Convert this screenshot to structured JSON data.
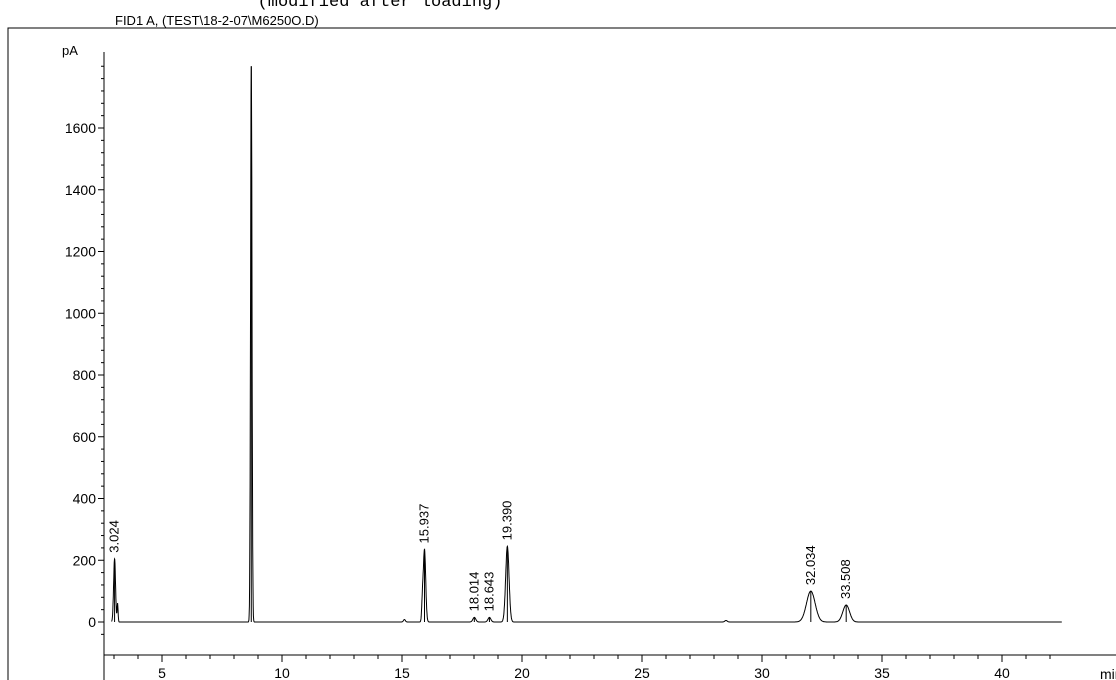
{
  "chart_data": {
    "type": "line",
    "header_note": "(modified after loading)",
    "title": "FID1 A, (TEST\\18-2-07\\M6250O.D)",
    "ylabel": "pA",
    "xlabel": "min",
    "xlim": [
      2.8,
      42.5
    ],
    "ylim": [
      -80,
      1820
    ],
    "x_ticks": [
      5,
      10,
      15,
      20,
      25,
      30,
      35,
      40
    ],
    "y_ticks": [
      0,
      200,
      400,
      600,
      800,
      1000,
      1200,
      1400,
      1600
    ],
    "grid": false,
    "line_color": "#000000",
    "peaks": [
      {
        "rt": 3.024,
        "height": 205,
        "label": "3.024"
      },
      {
        "rt": 8.72,
        "height": 1800,
        "label": ""
      },
      {
        "rt": 15.937,
        "height": 235,
        "label": "15.937"
      },
      {
        "rt": 18.014,
        "height": 15,
        "label": "18.014"
      },
      {
        "rt": 18.643,
        "height": 15,
        "label": "18.643"
      },
      {
        "rt": 19.39,
        "height": 245,
        "label": "19.390"
      },
      {
        "rt": 32.034,
        "height": 100,
        "label": "32.034"
      },
      {
        "rt": 33.508,
        "height": 55,
        "label": "33.508"
      }
    ]
  }
}
